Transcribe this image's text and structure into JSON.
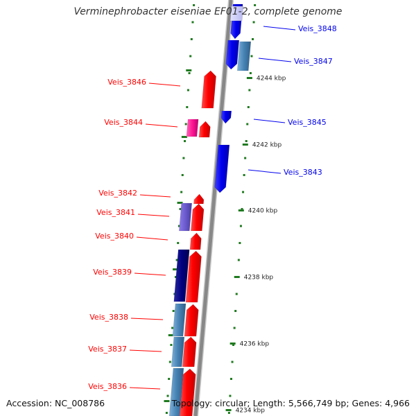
{
  "title": "Verminephrobacter eiseniae EF01-2, complete genome",
  "accession": "Accession: NC_008786",
  "summary": "Topology: circular; Length: 5,566,749 bp; Genes: 4,966",
  "colors": {
    "forward": "#ff0000",
    "reverse": "#0000ee",
    "tick": "#1f7a1f",
    "backbone": "#888888"
  },
  "kbp_ticks": [
    "4244 kbp",
    "4242 kbp",
    "4240 kbp",
    "4238 kbp",
    "4236 kbp",
    "4234 kbp"
  ],
  "genes": [
    {
      "label": "Veis_3848",
      "strand": "reverse"
    },
    {
      "label": "Veis_3847",
      "strand": "reverse"
    },
    {
      "label": "Veis_3846",
      "strand": "forward"
    },
    {
      "label": "Veis_3845",
      "strand": "reverse"
    },
    {
      "label": "Veis_3844",
      "strand": "forward"
    },
    {
      "label": "Veis_3843",
      "strand": "reverse"
    },
    {
      "label": "Veis_3842",
      "strand": "forward"
    },
    {
      "label": "Veis_3841",
      "strand": "forward"
    },
    {
      "label": "Veis_3840",
      "strand": "forward"
    },
    {
      "label": "Veis_3839",
      "strand": "forward"
    },
    {
      "label": "Veis_3838",
      "strand": "forward"
    },
    {
      "label": "Veis_3837",
      "strand": "forward"
    },
    {
      "label": "Veis_3836",
      "strand": "forward"
    }
  ]
}
